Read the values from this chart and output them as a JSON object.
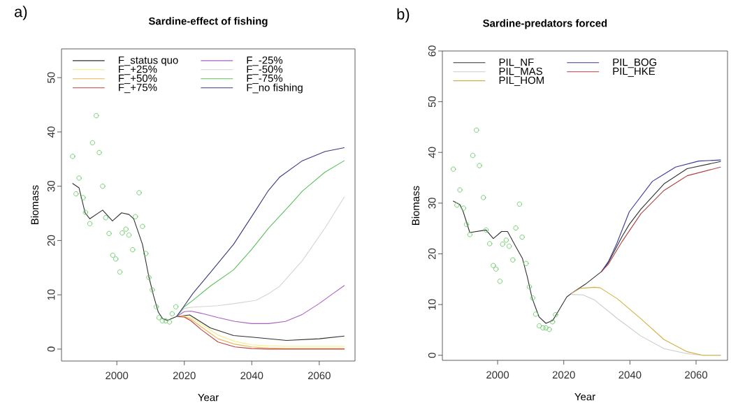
{
  "chart_data": [
    {
      "type": "line",
      "title": "Sardine-effect of fishing",
      "xlabel": "Year",
      "ylabel": "Biomass",
      "annotations": [
        "a)"
      ],
      "xlim": [
        1983.6,
        2070.6
      ],
      "ylim": [
        -2.2,
        55.3
      ],
      "xticks": [
        2000,
        2020,
        2040,
        2060
      ],
      "yticks": [
        0,
        10,
        20,
        30,
        40,
        50
      ],
      "grid": false,
      "legend": "top left",
      "line_style": "solid",
      "series": [
        {
          "name": "F_status quo",
          "color": "#303030",
          "x": [
            1986.9,
            1988.8,
            1990.6,
            1992,
            1995.8,
            1998.7,
            2001.4,
            2003.6,
            2005,
            2007.6,
            2009.5,
            2010.9,
            2012.3,
            2013.6,
            2015,
            2017.7,
            2021.6,
            2027.7,
            2034.6,
            2040,
            2050.3,
            2060,
            2067.4
          ],
          "values": [
            30.5,
            29.7,
            25.1,
            24.0,
            25.6,
            23.6,
            25.1,
            24.8,
            24.0,
            19.3,
            13.3,
            9.8,
            6.8,
            5.6,
            5.3,
            6.0,
            6.3,
            3.9,
            2.5,
            2.2,
            1.6,
            1.9,
            2.4
          ]
        },
        {
          "name": "F_+25%",
          "color": "#f2ee80",
          "x": [
            2017.7,
            2020,
            2022,
            2025,
            2030,
            2035,
            2040,
            2045,
            2050,
            2060,
            2067.4
          ],
          "values": [
            6.0,
            6.1,
            5.8,
            4.6,
            2.6,
            1.4,
            0.8,
            0.6,
            0.5,
            0.5,
            0.5
          ]
        },
        {
          "name": "F_+50%",
          "color": "#e8b458",
          "x": [
            2017.7,
            2020,
            2022,
            2025,
            2030,
            2035,
            2040,
            2045,
            2050,
            2060,
            2067.4
          ],
          "values": [
            6.0,
            6.0,
            5.5,
            4.1,
            1.9,
            0.9,
            0.4,
            0.2,
            0.1,
            0.1,
            0.1
          ]
        },
        {
          "name": "F_+75%",
          "color": "#c04040",
          "x": [
            2017.7,
            2020,
            2022,
            2025,
            2030,
            2035,
            2040,
            2045,
            2050,
            2060,
            2067.4
          ],
          "values": [
            6.0,
            5.9,
            5.2,
            3.6,
            1.3,
            0.4,
            0.1,
            0,
            0,
            0,
            0
          ]
        },
        {
          "name": "F_-25%",
          "color": "#a860c0",
          "x": [
            2017.7,
            2020,
            2022,
            2025,
            2030,
            2035,
            2040,
            2045,
            2050,
            2055,
            2060,
            2064,
            2067.4
          ],
          "values": [
            6.0,
            6.9,
            7.0,
            6.6,
            5.8,
            5.1,
            4.7,
            4.7,
            5.1,
            6.4,
            8.4,
            10.2,
            11.7
          ]
        },
        {
          "name": "F_-50%",
          "color": "#d4d4d4",
          "x": [
            2017.7,
            2020,
            2022,
            2030,
            2035,
            2041.3,
            2045,
            2048.3,
            2055,
            2061.7,
            2067.4
          ],
          "values": [
            6.0,
            7.5,
            7.7,
            8.0,
            8.4,
            9.0,
            10.2,
            11.6,
            16.3,
            22.3,
            28.0
          ]
        },
        {
          "name": "F_-75%",
          "color": "#5cc05c",
          "x": [
            2017.7,
            2020,
            2022.6,
            2027.7,
            2034.6,
            2040,
            2045,
            2048.3,
            2051.7,
            2055,
            2061.7,
            2067.4
          ],
          "values": [
            6.0,
            7.8,
            9.0,
            11.6,
            14.6,
            18.4,
            22.3,
            24.5,
            26.8,
            29.1,
            32.6,
            34.7
          ]
        },
        {
          "name": "F_no fishing",
          "color": "#3a3a80",
          "x": [
            2017.7,
            2020,
            2022.6,
            2027.7,
            2034.6,
            2041.3,
            2044.8,
            2048.3,
            2055,
            2061.7,
            2067.4
          ],
          "values": [
            6.0,
            8.0,
            10.3,
            14.1,
            19.3,
            25.7,
            29.1,
            31.7,
            34.7,
            36.4,
            37.1
          ]
        },
        {
          "type": "scatter",
          "marker": "circle",
          "color": "#66cc66",
          "x": [
            1986.9,
            1987.9,
            1988.8,
            1990.0,
            1990.7,
            1992.0,
            1992.8,
            1993.9,
            1994.8,
            1995.8,
            1996.7,
            1997.7,
            1998.8,
            1999.7,
            2000.9,
            2001.6,
            2002.7,
            2003.6,
            2004.7,
            2005.5,
            2006.6,
            2007.6,
            2008.6,
            2009.5,
            2010.5,
            2011.7,
            2012.5,
            2013.5,
            2014.5,
            2015.6,
            2016.4,
            2017.5
          ],
          "values": [
            35.5,
            28.6,
            31.5,
            27.9,
            25.2,
            23.1,
            38.0,
            43.0,
            36.2,
            30.0,
            24.2,
            21.3,
            17.3,
            16.6,
            14.2,
            21.4,
            22.1,
            21.0,
            18.3,
            24.4,
            28.8,
            22.6,
            17.6,
            13.2,
            10.9,
            7.8,
            5.8,
            5.2,
            5.2,
            5.0,
            6.5,
            7.8
          ]
        }
      ]
    },
    {
      "type": "line",
      "title": "Sardine-predators forced",
      "xlabel": "Year",
      "ylabel": "Biomass",
      "annotations": [
        "b)"
      ],
      "xlim": [
        1983.3,
        2069.5
      ],
      "ylim": [
        -1,
        60
      ],
      "xticks": [
        2000,
        2020,
        2040,
        2060
      ],
      "yticks": [
        0,
        10,
        20,
        30,
        40,
        50,
        60
      ],
      "grid": false,
      "legend": "top left",
      "line_style": "solid",
      "series": [
        {
          "name": "PIL_NF",
          "color": "#303030",
          "x": [
            1986.6,
            1988.6,
            1989.6,
            1991.6,
            1996.5,
            1998.7,
            2001.2,
            2003,
            2005.5,
            2007.5,
            2009,
            2010.4,
            2012.5,
            2014.6,
            2016.7,
            2018.8,
            2020.9,
            2022.3,
            2026.5,
            2031.4,
            2033.5,
            2037.7,
            2039.8,
            2043.3,
            2050.3,
            2057.3,
            2067.4
          ],
          "values": [
            30.4,
            29.7,
            28.3,
            24.2,
            24.7,
            23.0,
            24.4,
            24.4,
            21.4,
            19.1,
            15.4,
            11.3,
            7.6,
            6.3,
            6.9,
            9.2,
            11.5,
            12.2,
            14.0,
            16.5,
            18.3,
            23.5,
            25.8,
            28.8,
            33.8,
            36.8,
            38.2
          ]
        },
        {
          "name": "PIL_MAS",
          "color": "#cccccc",
          "x": [
            2022.3,
            2025.8,
            2029.3,
            2036.3,
            2043.3,
            2050.3,
            2057.3,
            2062,
            2067.4
          ],
          "values": [
            12.0,
            11.9,
            10.9,
            7.2,
            3.8,
            1.3,
            0.3,
            0,
            0
          ]
        },
        {
          "name": "PIL_HOM",
          "color": "#d4b040",
          "x": [
            2022.3,
            2025,
            2029.3,
            2031,
            2036.3,
            2043.3,
            2050.3,
            2057.3,
            2062,
            2067.4
          ],
          "values": [
            12.2,
            13.2,
            13.4,
            13.3,
            11.1,
            7.2,
            3.1,
            0.7,
            0,
            0
          ]
        },
        {
          "name": "PIL_BOG",
          "color": "#3a3a9a",
          "x": [
            2031.4,
            2033.5,
            2036,
            2039.8,
            2046.8,
            2053.8,
            2060.8,
            2067.4
          ],
          "values": [
            16.5,
            18.5,
            22,
            28.3,
            34.3,
            37.1,
            38.3,
            38.5
          ]
        },
        {
          "name": "PIL_HKE",
          "color": "#b04040",
          "x": [
            2031.4,
            2033.5,
            2037.7,
            2043.3,
            2050.3,
            2057.3,
            2067.4
          ],
          "values": [
            16.5,
            18.0,
            22.5,
            27.9,
            32.5,
            35.4,
            37.1
          ]
        },
        {
          "type": "scatter",
          "marker": "circle",
          "color": "#66cc66",
          "x": [
            1986.6,
            1987.7,
            1988.6,
            1989.7,
            1990.6,
            1991.6,
            1992.5,
            1993.6,
            1994.5,
            1995.7,
            1996.5,
            1997.6,
            1998.7,
            1999.5,
            2000.7,
            2001.5,
            2002.6,
            2003.5,
            2004.6,
            2005.5,
            2006.6,
            2007.4,
            2008.6,
            2009.6,
            2010.6,
            2011.5,
            2012.6,
            2013.7,
            2014.6,
            2015.6,
            2016.6,
            2017.5
          ],
          "values": [
            36.7,
            29.6,
            32.6,
            29.0,
            25.8,
            23.8,
            39.4,
            44.4,
            37.4,
            31.1,
            24.7,
            22.0,
            17.7,
            17.0,
            14.6,
            21.9,
            22.7,
            21.5,
            18.8,
            25.1,
            29.8,
            23.3,
            18.1,
            13.5,
            11.3,
            8.1,
            5.8,
            5.4,
            5.4,
            5.1,
            6.6,
            8.0
          ]
        }
      ]
    }
  ]
}
